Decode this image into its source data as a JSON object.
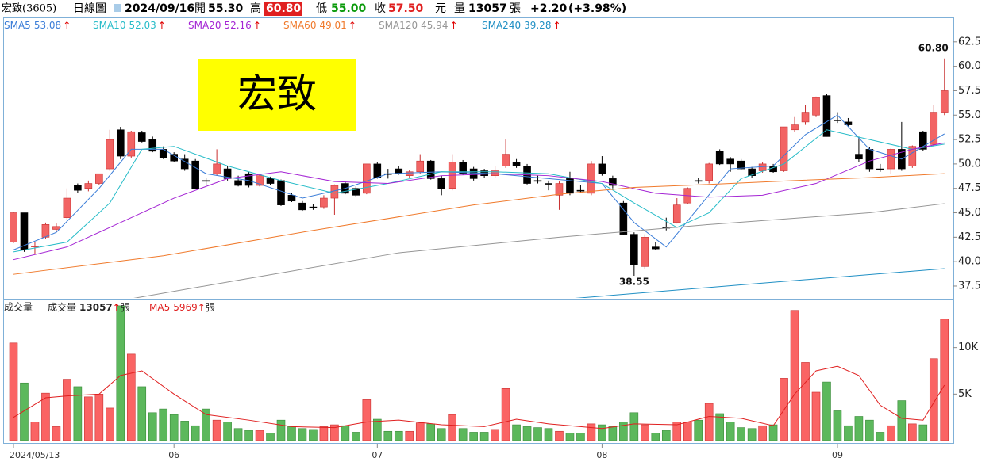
{
  "header": {
    "name": "宏致(3605)",
    "period": "日線圖",
    "date": "2024/09/16",
    "open_label": "開",
    "open": "55.30",
    "high_label": "高",
    "high": "60.80",
    "low_label": "低",
    "low": "55.00",
    "close_label": "收",
    "close": "57.50",
    "unit": "元",
    "volume_label": "量",
    "volume": "13057",
    "volume_unit": "張",
    "change": "+2.20",
    "change_pct": "(+3.98%)"
  },
  "chart_data": [
    {
      "type": "candlestick",
      "title": "宏致",
      "categories": [
        "2024/05/13",
        null,
        null,
        null,
        null,
        null,
        null,
        null,
        null,
        null,
        null,
        null,
        null,
        null,
        null,
        "06",
        null,
        null,
        null,
        null,
        null,
        null,
        null,
        null,
        null,
        null,
        null,
        null,
        null,
        null,
        null,
        null,
        null,
        null,
        "07",
        null,
        null,
        null,
        null,
        null,
        null,
        null,
        null,
        null,
        null,
        null,
        null,
        null,
        null,
        null,
        null,
        null,
        null,
        null,
        null,
        "08",
        null,
        null,
        null,
        null,
        null,
        null,
        null,
        null,
        null,
        null,
        null,
        null,
        null,
        null,
        null,
        null,
        null,
        null,
        null,
        null,
        null,
        "09",
        null,
        null,
        null,
        null,
        null,
        null,
        null,
        null,
        null,
        null
      ],
      "open": [
        42.0,
        45.0,
        41.5,
        42.5,
        43.3,
        44.5,
        47.8,
        47.5,
        48.0,
        49.5,
        53.5,
        50.8,
        53.2,
        52.5,
        51.5,
        51.0,
        50.5,
        50.3,
        48.3,
        49.0,
        49.5,
        48.3,
        49.0,
        47.8,
        48.5,
        48.3,
        46.8,
        46.0,
        45.6,
        45.6,
        46.5,
        48.0,
        47.5,
        47.0,
        50.0,
        49.0,
        49.5,
        48.8,
        49.2,
        50.3,
        48.5,
        47.5,
        50.2,
        49.5,
        49.3,
        48.8,
        49.8,
        50.2,
        49.8,
        48.3,
        48.0,
        46.8,
        48.5,
        47.3,
        47.0,
        50.0,
        48.5,
        46.0,
        42.8,
        39.5,
        41.5,
        43.5,
        44.0,
        46.0,
        48.3,
        48.3,
        51.3,
        50.5,
        50.3,
        49.5,
        49.3,
        49.8,
        49.3,
        53.5,
        54.3,
        55.0,
        57.0,
        54.5,
        54.3,
        51.0,
        51.5,
        49.5,
        49.5,
        51.5,
        49.8,
        53.3,
        52.0,
        55.3
      ],
      "high": [
        45.1,
        45.0,
        42.0,
        44.0,
        43.9,
        47.5,
        48.0,
        48.3,
        49.0,
        53.5,
        53.8,
        53.4,
        53.4,
        52.8,
        51.8,
        51.2,
        51.0,
        50.5,
        48.6,
        51.5,
        49.8,
        48.8,
        49.2,
        48.9,
        48.7,
        48.4,
        47.0,
        46.2,
        45.9,
        46.8,
        47.9,
        48.2,
        47.7,
        50.0,
        50.2,
        49.5,
        49.8,
        49.4,
        51.0,
        50.4,
        48.8,
        51.0,
        50.4,
        49.7,
        49.5,
        49.8,
        52.5,
        50.5,
        50.0,
        48.8,
        48.3,
        48.2,
        49.2,
        47.8,
        50.3,
        50.8,
        48.8,
        46.2,
        43.0,
        42.8,
        42.0,
        44.5,
        46.5,
        47.6,
        48.6,
        50.1,
        51.5,
        50.7,
        50.5,
        49.7,
        50.2,
        50.0,
        53.8,
        54.8,
        56.0,
        56.9,
        57.2,
        55.3,
        54.7,
        52.8,
        51.7,
        50.0,
        51.6,
        54.3,
        51.9,
        53.4,
        56.0,
        60.8
      ],
      "low": [
        41.9,
        41.0,
        40.8,
        42.3,
        43.0,
        44.3,
        47.0,
        47.2,
        47.8,
        49.3,
        50.5,
        50.6,
        52.2,
        51.2,
        50.5,
        50.2,
        49.3,
        47.4,
        47.8,
        48.8,
        48.3,
        47.7,
        47.6,
        47.7,
        47.8,
        45.7,
        46.1,
        45.2,
        45.3,
        45.4,
        44.8,
        46.9,
        46.6,
        46.9,
        48.5,
        48.5,
        48.9,
        48.6,
        49.0,
        48.4,
        46.8,
        47.3,
        48.9,
        48.3,
        48.6,
        48.6,
        49.6,
        49.6,
        47.9,
        48.0,
        47.3,
        45.3,
        46.8,
        47.0,
        46.8,
        48.8,
        47.5,
        42.7,
        38.55,
        39.2,
        41.2,
        43.2,
        43.9,
        45.9,
        48.0,
        48.0,
        49.9,
        49.2,
        49.4,
        48.6,
        49.1,
        49.1,
        49.2,
        53.3,
        54.0,
        54.8,
        52.8,
        54.2,
        53.8,
        50.2,
        49.2,
        49.2,
        49.0,
        49.3,
        49.6,
        51.3,
        51.8,
        55.0
      ],
      "close": [
        45.0,
        41.2,
        41.6,
        43.8,
        43.6,
        46.5,
        47.3,
        48.0,
        49.0,
        52.5,
        50.8,
        53.3,
        52.3,
        51.3,
        50.6,
        50.3,
        49.5,
        47.5,
        48.3,
        50.0,
        48.5,
        47.8,
        47.8,
        48.8,
        48.0,
        45.8,
        46.2,
        45.3,
        45.6,
        46.5,
        47.8,
        47.0,
        46.8,
        50.0,
        48.6,
        49.0,
        49.0,
        49.2,
        50.3,
        48.5,
        47.5,
        50.2,
        49.0,
        48.5,
        48.8,
        49.3,
        51.0,
        49.8,
        48.0,
        48.3,
        48.0,
        48.0,
        47.0,
        47.3,
        50.0,
        49.0,
        47.8,
        42.8,
        39.7,
        42.5,
        41.3,
        43.5,
        45.8,
        47.5,
        48.3,
        50.0,
        50.0,
        50.0,
        49.5,
        48.8,
        50.0,
        49.2,
        53.8,
        54.0,
        55.3,
        56.8,
        52.8,
        54.5,
        54.0,
        50.5,
        49.5,
        49.5,
        51.5,
        49.5,
        51.8,
        51.5,
        55.3,
        57.5
      ],
      "up_color": "#f26464",
      "down_color": "#000000",
      "trend": "↑",
      "trend_color": "#e00000",
      "high_label": "60.80",
      "low_label": "38.55",
      "ylim": [
        36.2,
        65.0
      ],
      "yticks": [
        37.5,
        {
          "value": 40,
          "label": "40.0"
        },
        42.5,
        {
          "value": 45,
          "label": "45.0"
        },
        47.5,
        {
          "value": 50,
          "label": "50.0"
        },
        52.5,
        {
          "value": 55,
          "label": "55.0"
        },
        57.5,
        {
          "value": 60,
          "label": "60.0"
        },
        62.5
      ],
      "series": [
        {
          "name": "SMA5",
          "color": "#3b7dd8",
          "x": [
            0,
            4,
            8,
            11,
            14,
            18,
            22,
            27,
            31,
            35,
            40,
            45,
            50,
            55,
            58,
            61,
            64,
            67,
            71,
            74,
            77,
            80,
            83,
            87
          ],
          "values": [
            41.2,
            43,
            47.5,
            51.5,
            51.5,
            49,
            48.3,
            46.5,
            47.5,
            49,
            49.2,
            49,
            48.5,
            48,
            44,
            41.5,
            45.5,
            49.5,
            49.8,
            53,
            55,
            51.5,
            50.5,
            53.08
          ]
        },
        {
          "name": "SMA10",
          "color": "#27bcc8",
          "x": [
            0,
            5,
            9,
            12,
            15,
            20,
            25,
            30,
            35,
            40,
            45,
            50,
            55,
            58,
            62,
            65,
            68,
            72,
            76,
            80,
            84,
            87
          ],
          "values": [
            41.0,
            42,
            46,
            51.5,
            51.8,
            49.8,
            48.3,
            47,
            48,
            49.2,
            49.2,
            49,
            48,
            46,
            43.5,
            45,
            48.5,
            50,
            53.5,
            52.5,
            51.5,
            52.03
          ]
        },
        {
          "name": "SMA20",
          "color": "#a424d4",
          "x": [
            0,
            5,
            10,
            15,
            20,
            25,
            30,
            35,
            40,
            45,
            50,
            55,
            60,
            65,
            70,
            75,
            80,
            84,
            87
          ],
          "values": [
            40.2,
            41.5,
            44,
            46.5,
            48.5,
            49.2,
            48.2,
            48.0,
            48.8,
            49.0,
            48.8,
            48.2,
            47.0,
            46.6,
            46.8,
            48.0,
            50.3,
            51.5,
            52.16
          ]
        },
        {
          "name": "SMA60",
          "color": "#f07a2c",
          "x": [
            0,
            14,
            28,
            43,
            51,
            58,
            65,
            73,
            80,
            87
          ],
          "values": [
            38.7,
            40.6,
            43.2,
            45.8,
            46.9,
            47.6,
            47.9,
            48.3,
            48.6,
            49.01
          ]
        },
        {
          "name": "SMA120",
          "color": "#959595",
          "x": [
            11,
            21,
            36,
            51,
            65,
            80,
            87
          ],
          "values": [
            36.2,
            38.1,
            40.9,
            42.5,
            43.8,
            45,
            45.94
          ]
        },
        {
          "name": "SMA240",
          "color": "#1f8fc4",
          "x": [
            52,
            70,
            87
          ],
          "values": [
            36.2,
            37.8,
            39.28
          ]
        }
      ]
    },
    {
      "type": "bar",
      "title": "成交量",
      "unit": "張",
      "values": [
        10500,
        6200,
        2000,
        5100,
        1500,
        6600,
        5800,
        4700,
        5000,
        3500,
        14500,
        9300,
        5800,
        3000,
        3400,
        2800,
        2100,
        1600,
        3400,
        2200,
        2000,
        1300,
        1100,
        1100,
        800,
        2200,
        1500,
        1300,
        1200,
        1500,
        1700,
        1600,
        900,
        4400,
        2300,
        1000,
        1000,
        1000,
        1900,
        1800,
        1300,
        2800,
        1300,
        900,
        900,
        1200,
        5600,
        1700,
        1500,
        1400,
        1300,
        1000,
        800,
        800,
        1800,
        1700,
        1500,
        2000,
        3000,
        1700,
        800,
        1100,
        2000,
        2000,
        2200,
        4000,
        2900,
        2000,
        1400,
        1300,
        1600,
        1700,
        6700,
        14000,
        8400,
        5200,
        6300,
        3200,
        1600,
        2600,
        2200,
        900,
        1600,
        4300,
        1800,
        1700,
        8800,
        13057
      ],
      "up_color": "#fa6464",
      "down_color": "#5cb85c",
      "ylim": [
        0,
        15000
      ],
      "yticks": [
        {
          "value": 5000,
          "label": "5K"
        },
        {
          "value": 10000,
          "label": "10K"
        }
      ],
      "series": [
        {
          "name": "MA5",
          "color": "#e02020",
          "x": [
            0,
            3,
            5,
            8,
            10,
            12,
            15,
            18,
            22,
            26,
            30,
            33,
            36,
            40,
            44,
            47,
            50,
            55,
            58,
            62,
            65,
            68,
            71,
            73,
            75,
            77,
            79,
            81,
            83,
            85,
            87
          ],
          "values": [
            2500,
            4600,
            4800,
            5000,
            7000,
            7500,
            5000,
            2800,
            2200,
            1500,
            1400,
            2000,
            2200,
            1700,
            1500,
            2300,
            1800,
            1300,
            1800,
            1700,
            2600,
            2400,
            1600,
            5000,
            7500,
            8000,
            7000,
            3800,
            2400,
            2200,
            5969
          ]
        }
      ]
    }
  ]
}
